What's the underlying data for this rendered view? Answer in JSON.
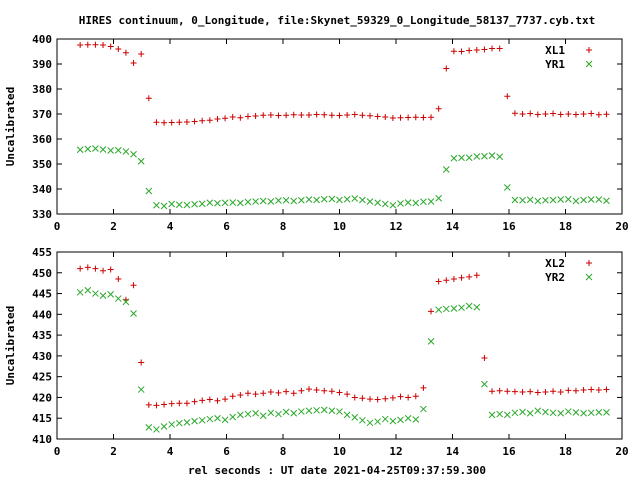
{
  "title": "HIRES continuum, 0_Longitude, file:Skynet_59329_0_Longitude_58137_7737.cyb.txt",
  "xlabel": "rel seconds : UT date 2021-04-25T09:37:59.300",
  "colors": {
    "series1": "#cc0000",
    "series2": "#2aa82a",
    "axes": "#000000"
  },
  "chart_data": [
    {
      "type": "scatter",
      "ylabel": "Uncalibrated",
      "xlim": [
        0,
        20
      ],
      "ylim": [
        330,
        400
      ],
      "xticks": [
        0,
        2,
        4,
        6,
        8,
        10,
        12,
        14,
        16,
        18,
        20
      ],
      "yticks": [
        330,
        340,
        350,
        360,
        370,
        380,
        390,
        400
      ],
      "legend_position": "top-right",
      "series": [
        {
          "name": "XL1",
          "marker": "plus",
          "x": [
            0.82,
            1.09,
            1.36,
            1.63,
            1.9,
            2.17,
            2.44,
            2.71,
            2.98,
            3.25,
            3.52,
            3.79,
            4.06,
            4.33,
            4.6,
            4.87,
            5.14,
            5.41,
            5.68,
            5.95,
            6.22,
            6.49,
            6.76,
            7.03,
            7.3,
            7.57,
            7.84,
            8.11,
            8.38,
            8.65,
            8.92,
            9.19,
            9.46,
            9.73,
            10.0,
            10.27,
            10.54,
            10.81,
            11.08,
            11.35,
            11.62,
            11.89,
            12.16,
            12.43,
            12.7,
            12.97,
            13.24,
            13.51,
            13.78,
            14.05,
            14.32,
            14.59,
            14.86,
            15.13,
            15.4,
            15.67,
            15.94,
            16.21,
            16.48,
            16.75,
            17.02,
            17.29,
            17.56,
            17.83,
            18.1,
            18.37,
            18.64,
            18.91,
            19.18,
            19.45
          ],
          "y": [
            397.6,
            397.7,
            397.7,
            397.6,
            397.0,
            396.0,
            394.5,
            390.4,
            394.0,
            376.3,
            366.7,
            366.5,
            366.6,
            366.7,
            366.8,
            367.0,
            367.3,
            367.5,
            368.0,
            368.3,
            368.8,
            368.5,
            369.0,
            369.2,
            369.5,
            369.6,
            369.4,
            369.5,
            369.7,
            369.6,
            369.6,
            369.8,
            369.7,
            369.5,
            369.4,
            369.6,
            369.8,
            369.5,
            369.3,
            369.0,
            368.8,
            368.4,
            368.5,
            368.6,
            368.7,
            368.6,
            368.7,
            372.1,
            388.2,
            395.1,
            395.0,
            395.4,
            395.6,
            395.8,
            396.2,
            396.2,
            377.1,
            370.3,
            370.0,
            370.2,
            369.8,
            370.0,
            370.2,
            369.8,
            370.0,
            369.8,
            370.0,
            370.2,
            369.7,
            369.9
          ]
        },
        {
          "name": "YR1",
          "marker": "x",
          "x": [
            0.82,
            1.09,
            1.36,
            1.63,
            1.9,
            2.17,
            2.44,
            2.71,
            2.98,
            3.25,
            3.52,
            3.79,
            4.06,
            4.33,
            4.6,
            4.87,
            5.14,
            5.41,
            5.68,
            5.95,
            6.22,
            6.49,
            6.76,
            7.03,
            7.3,
            7.57,
            7.84,
            8.11,
            8.38,
            8.65,
            8.92,
            9.19,
            9.46,
            9.73,
            10.0,
            10.27,
            10.54,
            10.81,
            11.08,
            11.35,
            11.62,
            11.89,
            12.16,
            12.43,
            12.7,
            12.97,
            13.24,
            13.51,
            13.78,
            14.05,
            14.32,
            14.59,
            14.86,
            15.13,
            15.4,
            15.67,
            15.94,
            16.21,
            16.48,
            16.75,
            17.02,
            17.29,
            17.56,
            17.83,
            18.1,
            18.37,
            18.64,
            18.91,
            19.18,
            19.45
          ],
          "y": [
            355.7,
            356.0,
            356.2,
            355.8,
            355.4,
            355.5,
            355.0,
            353.9,
            351.1,
            339.2,
            333.5,
            333.2,
            334.0,
            333.7,
            333.6,
            333.9,
            334.1,
            334.5,
            334.3,
            334.5,
            334.6,
            334.4,
            334.8,
            335.0,
            335.2,
            335.0,
            335.4,
            335.5,
            335.2,
            335.5,
            335.8,
            335.6,
            335.9,
            336.0,
            335.6,
            335.9,
            336.2,
            335.6,
            335.0,
            334.5,
            334.0,
            333.5,
            334.2,
            334.6,
            334.4,
            334.9,
            335.0,
            336.3,
            347.8,
            352.3,
            352.5,
            352.5,
            353.0,
            353.1,
            353.4,
            352.9,
            340.6,
            335.6,
            335.5,
            335.7,
            335.2,
            335.5,
            335.6,
            335.8,
            335.9,
            335.2,
            335.6,
            335.8,
            335.8,
            335.3
          ]
        }
      ]
    },
    {
      "type": "scatter",
      "ylabel": "Uncalibrated",
      "xlim": [
        0,
        20
      ],
      "ylim": [
        410,
        455
      ],
      "xticks": [
        0,
        2,
        4,
        6,
        8,
        10,
        12,
        14,
        16,
        18,
        20
      ],
      "yticks": [
        410,
        415,
        420,
        425,
        430,
        435,
        440,
        445,
        450,
        455
      ],
      "legend_position": "top-right",
      "series": [
        {
          "name": "XL2",
          "marker": "plus",
          "x": [
            0.82,
            1.09,
            1.36,
            1.63,
            1.9,
            2.17,
            2.44,
            2.71,
            2.98,
            3.25,
            3.52,
            3.79,
            4.06,
            4.33,
            4.6,
            4.87,
            5.14,
            5.41,
            5.68,
            5.95,
            6.22,
            6.49,
            6.76,
            7.03,
            7.3,
            7.57,
            7.84,
            8.11,
            8.38,
            8.65,
            8.92,
            9.19,
            9.46,
            9.73,
            10.0,
            10.27,
            10.54,
            10.81,
            11.08,
            11.35,
            11.62,
            11.89,
            12.16,
            12.43,
            12.7,
            12.97,
            13.24,
            13.51,
            13.78,
            14.05,
            14.32,
            14.59,
            14.86,
            15.13,
            15.4,
            15.67,
            15.94,
            16.21,
            16.48,
            16.75,
            17.02,
            17.29,
            17.56,
            17.83,
            18.1,
            18.37,
            18.64,
            18.91,
            19.18,
            19.45
          ],
          "y": [
            451.0,
            451.3,
            451.0,
            450.5,
            450.8,
            448.5,
            443.5,
            447.0,
            428.4,
            418.2,
            418.1,
            418.3,
            418.5,
            418.6,
            418.6,
            419.0,
            419.3,
            419.5,
            419.2,
            419.6,
            420.3,
            420.6,
            421.0,
            420.8,
            421.0,
            421.3,
            421.1,
            421.4,
            421.0,
            421.6,
            422.0,
            421.8,
            421.6,
            421.5,
            421.2,
            420.8,
            420.0,
            419.8,
            419.6,
            419.5,
            419.7,
            419.9,
            420.2,
            420.0,
            420.3,
            422.3,
            440.7,
            447.9,
            448.2,
            448.5,
            448.8,
            449.0,
            449.4,
            429.5,
            421.5,
            421.6,
            421.5,
            421.4,
            421.3,
            421.4,
            421.2,
            421.3,
            421.5,
            421.3,
            421.7,
            421.6,
            421.8,
            421.9,
            421.8,
            421.9
          ]
        },
        {
          "name": "YR2",
          "marker": "x",
          "x": [
            0.82,
            1.09,
            1.36,
            1.63,
            1.9,
            2.17,
            2.44,
            2.71,
            2.98,
            3.25,
            3.52,
            3.79,
            4.06,
            4.33,
            4.6,
            4.87,
            5.14,
            5.41,
            5.68,
            5.95,
            6.22,
            6.49,
            6.76,
            7.03,
            7.3,
            7.57,
            7.84,
            8.11,
            8.38,
            8.65,
            8.92,
            9.19,
            9.46,
            9.73,
            10.0,
            10.27,
            10.54,
            10.81,
            11.08,
            11.35,
            11.62,
            11.89,
            12.16,
            12.43,
            12.7,
            12.97,
            13.24,
            13.51,
            13.78,
            14.05,
            14.32,
            14.59,
            14.86,
            15.13,
            15.4,
            15.67,
            15.94,
            16.21,
            16.48,
            16.75,
            17.02,
            17.29,
            17.56,
            17.83,
            18.1,
            18.37,
            18.64,
            18.91,
            19.18,
            19.45
          ],
          "y": [
            445.3,
            445.8,
            445.0,
            444.5,
            444.8,
            443.8,
            443.0,
            440.2,
            421.9,
            412.8,
            412.3,
            413.0,
            413.5,
            413.8,
            414.0,
            414.3,
            414.5,
            414.8,
            415.0,
            414.6,
            415.3,
            415.8,
            416.0,
            416.2,
            415.6,
            416.3,
            416.0,
            416.5,
            416.2,
            416.6,
            416.8,
            416.9,
            417.0,
            416.8,
            416.6,
            415.8,
            415.2,
            414.5,
            413.9,
            414.2,
            414.8,
            414.3,
            414.6,
            415.0,
            414.7,
            417.2,
            433.5,
            441.1,
            441.3,
            441.4,
            441.6,
            442.0,
            441.7,
            423.2,
            415.8,
            416.0,
            415.8,
            416.3,
            416.5,
            416.2,
            416.8,
            416.5,
            416.3,
            416.2,
            416.6,
            416.4,
            416.2,
            416.3,
            416.4,
            416.4
          ]
        }
      ]
    }
  ]
}
